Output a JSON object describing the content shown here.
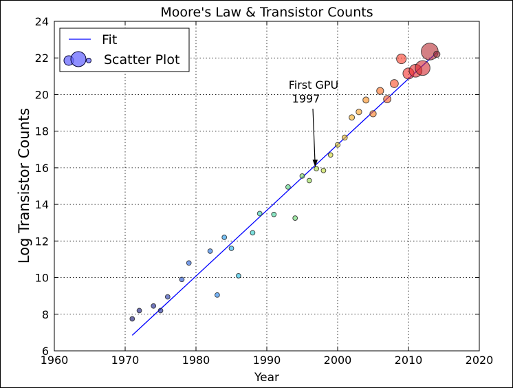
{
  "chart_data": {
    "type": "scatter",
    "title": "Moore's Law & Transistor Counts",
    "xlabel": "Year",
    "ylabel": "Log Transistor Counts",
    "xlim": [
      1960,
      2020
    ],
    "ylim": [
      6,
      24
    ],
    "xticks": [
      1960,
      1970,
      1980,
      1990,
      2000,
      2010,
      2020
    ],
    "yticks": [
      6,
      8,
      10,
      12,
      14,
      16,
      18,
      20,
      22,
      24
    ],
    "grid": true,
    "legend": {
      "placement": "top-left",
      "entries": [
        "Fit",
        "Scatter Plot"
      ]
    },
    "fit_line": {
      "name": "Fit",
      "color": "#0000ff",
      "x": [
        1971,
        2014
      ],
      "y": [
        6.85,
        22.3
      ]
    },
    "scatter": {
      "name": "Scatter Plot",
      "x": [
        1971,
        1972,
        1974,
        1975,
        1976,
        1978,
        1979,
        1982,
        1983,
        1984,
        1985,
        1986,
        1988,
        1989,
        1991,
        1993,
        1994,
        1995,
        1996,
        1997,
        1998,
        1999,
        2000,
        2001,
        2002,
        2003,
        2004,
        2005,
        2006,
        2007,
        2008,
        2009,
        2010,
        2011,
        2012,
        2013,
        2014
      ],
      "y": [
        7.75,
        8.2,
        8.45,
        8.2,
        8.95,
        9.9,
        10.8,
        11.45,
        9.05,
        12.2,
        11.6,
        10.1,
        12.45,
        13.5,
        13.45,
        14.95,
        13.25,
        15.55,
        15.3,
        15.95,
        15.85,
        16.7,
        17.25,
        17.65,
        18.75,
        19.05,
        19.7,
        18.95,
        20.2,
        19.75,
        20.6,
        21.95,
        21.15,
        21.3,
        21.45,
        22.35,
        22.2
      ],
      "sizes": [
        16,
        16,
        16,
        16,
        16,
        16,
        16,
        16,
        16,
        16,
        16,
        16,
        16,
        16,
        16,
        16,
        16,
        16,
        16,
        16,
        16,
        16,
        18,
        20,
        22,
        24,
        28,
        30,
        36,
        40,
        48,
        70,
        90,
        120,
        160,
        210,
        30
      ],
      "colors": [
        "#0c0c6e",
        "#10147e",
        "#131c8e",
        "#16249c",
        "#1a33ac",
        "#1a4ccc",
        "#1a58d9",
        "#1a70e6",
        "#1a80ee",
        "#1a98f0",
        "#1aaaec",
        "#1cbce4",
        "#23cbc8",
        "#2ccfb0",
        "#3ad39a",
        "#4fd682",
        "#64d86c",
        "#7ada5a",
        "#92db4a",
        "#aadc3c",
        "#c0dc34",
        "#d2d82c",
        "#e4d024",
        "#f0c020",
        "#f6ae1e",
        "#f89e1c",
        "#fa8c1a",
        "#fb7c1a",
        "#fc6a1c",
        "#fc5a20",
        "#fb4c24",
        "#f83c28",
        "#f42e2c",
        "#e82a2e",
        "#d22a30",
        "#b82c32",
        "#9a2e34"
      ]
    },
    "annotation": {
      "text_line1": "First GPU",
      "text_line2": "1997",
      "target_x": 1997,
      "target_y": 15.95,
      "text_x": 1996.5,
      "text_y": 20.0
    }
  }
}
